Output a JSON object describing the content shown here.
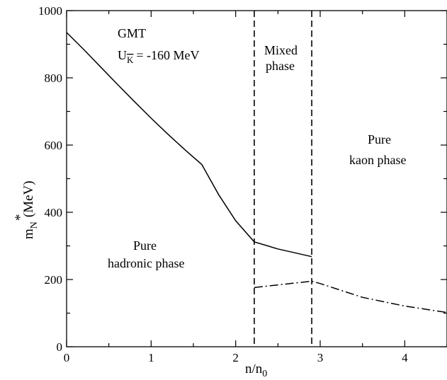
{
  "chart_data": {
    "type": "line",
    "xlabel": {
      "main": "n/n",
      "sub": "0"
    },
    "ylabel": {
      "main": "m",
      "sup": "*",
      "sub": "N",
      "unit": "(MeV)"
    },
    "xlim": [
      0,
      4.5
    ],
    "ylim": [
      0,
      1000
    ],
    "xticks": [
      0,
      1,
      2,
      3,
      4
    ],
    "yticks": [
      0,
      200,
      400,
      600,
      800,
      1000
    ],
    "grid": false,
    "phase_boundaries": [
      2.22,
      2.9
    ],
    "annotations": {
      "model": "GMT",
      "potential_main": "U",
      "potential_sub": "K",
      "potential_value": "= -160 MeV",
      "mixed": [
        "Mixed",
        "phase"
      ],
      "kaon": [
        "Pure",
        "kaon phase"
      ],
      "hadronic": [
        "Pure",
        "hadronic phase"
      ]
    },
    "series": [
      {
        "style": "solid",
        "points": [
          [
            0,
            935
          ],
          [
            0.2,
            885
          ],
          [
            0.4,
            833
          ],
          [
            0.6,
            781
          ],
          [
            0.8,
            730
          ],
          [
            1.0,
            680
          ],
          [
            1.2,
            632
          ],
          [
            1.4,
            586
          ],
          [
            1.6,
            542
          ],
          [
            1.8,
            452
          ],
          [
            2.0,
            375
          ],
          [
            2.22,
            312
          ],
          [
            2.5,
            291
          ],
          [
            2.9,
            268
          ]
        ]
      },
      {
        "style": "dashdot",
        "points": [
          [
            2.22,
            176
          ],
          [
            2.5,
            184
          ],
          [
            2.9,
            195
          ],
          [
            3.0,
            188
          ],
          [
            3.5,
            147
          ],
          [
            4.0,
            121
          ],
          [
            4.5,
            102
          ]
        ]
      }
    ]
  }
}
